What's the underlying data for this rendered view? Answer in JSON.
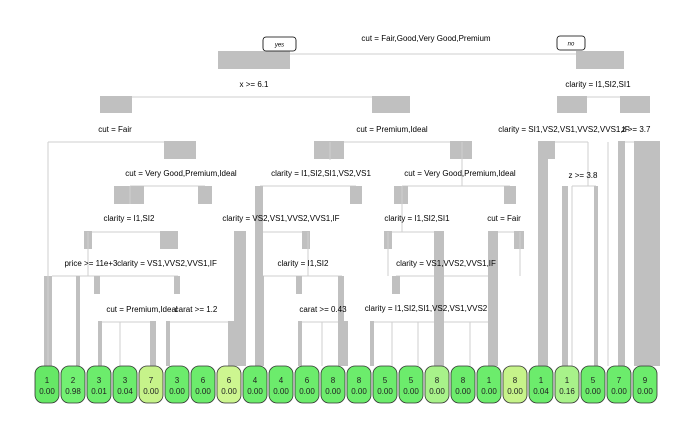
{
  "figure": {
    "yes_label": "yes",
    "no_label": "no"
  },
  "splits": [
    {
      "label": "cut = Fair,Good,Very Good,Premium"
    },
    {
      "label": "x >= 6.1"
    },
    {
      "label": "clarity = I1,SI2,SI1"
    },
    {
      "label": "cut = Fair"
    },
    {
      "label": "cut = Premium,Ideal"
    },
    {
      "label": "clarity = SI1,VS2,VS1,VVS2,VVS1,IF"
    },
    {
      "label": "z >= 3.7"
    },
    {
      "label": "cut = Very Good,Premium,Ideal"
    },
    {
      "label": "clarity = I1,SI2,SI1,VS2,VS1"
    },
    {
      "label": "cut = Very Good,Premium,Ideal"
    },
    {
      "label": "z >= 3.8"
    },
    {
      "label": "clarity = I1,SI2"
    },
    {
      "label": "clarity = VS2,VS1,VVS2,VVS1,IF"
    },
    {
      "label": "clarity = I1,SI2,SI1"
    },
    {
      "label": "cut = Fair"
    },
    {
      "label": "price >= 11e+3"
    },
    {
      "label": "clarity = VS1,VVS2,VVS1,IF"
    },
    {
      "label": "clarity = I1,SI2"
    },
    {
      "label": "clarity = VS1,VVS2,VVS1,IF"
    },
    {
      "label": "cut = Premium,Ideal"
    },
    {
      "label": "carat >= 1.2"
    },
    {
      "label": "carat >= 0.43"
    },
    {
      "label": "clarity = I1,SI2,SI1,VS2,VS1,VVS2"
    }
  ],
  "leaves": [
    {
      "class": "1",
      "value": "0.00",
      "color": "#66e866"
    },
    {
      "class": "2",
      "value": "0.98",
      "color": "#72f072"
    },
    {
      "class": "3",
      "value": "0.01",
      "color": "#6cec6c"
    },
    {
      "class": "3",
      "value": "0.04",
      "color": "#6cec6c"
    },
    {
      "class": "7",
      "value": "0.00",
      "color": "#c6f38a"
    },
    {
      "class": "3",
      "value": "0.00",
      "color": "#6cec6c"
    },
    {
      "class": "6",
      "value": "0.00",
      "color": "#6cec6c"
    },
    {
      "class": "6",
      "value": "0.00",
      "color": "#cdf690"
    },
    {
      "class": "4",
      "value": "0.00",
      "color": "#6cec6c"
    },
    {
      "class": "4",
      "value": "0.00",
      "color": "#6cec6c"
    },
    {
      "class": "6",
      "value": "0.00",
      "color": "#6cec6c"
    },
    {
      "class": "8",
      "value": "0.00",
      "color": "#6cec6c"
    },
    {
      "class": "8",
      "value": "0.00",
      "color": "#6cec6c"
    },
    {
      "class": "5",
      "value": "0.00",
      "color": "#6cec6c"
    },
    {
      "class": "5",
      "value": "0.00",
      "color": "#6cec6c"
    },
    {
      "class": "8",
      "value": "0.00",
      "color": "#a8f28a"
    },
    {
      "class": "8",
      "value": "0.00",
      "color": "#6cec6c"
    },
    {
      "class": "1",
      "value": "0.00",
      "color": "#6cec6c"
    },
    {
      "class": "8",
      "value": "0.00",
      "color": "#c6f38a"
    },
    {
      "class": "1",
      "value": "0.04",
      "color": "#6cec6c"
    },
    {
      "class": "1",
      "value": "0.16",
      "color": "#a8f28a"
    },
    {
      "class": "5",
      "value": "0.00",
      "color": "#6cec6c"
    },
    {
      "class": "7",
      "value": "0.00",
      "color": "#6cec6c"
    },
    {
      "class": "9",
      "value": "0.00",
      "color": "#6cec6c"
    }
  ]
}
